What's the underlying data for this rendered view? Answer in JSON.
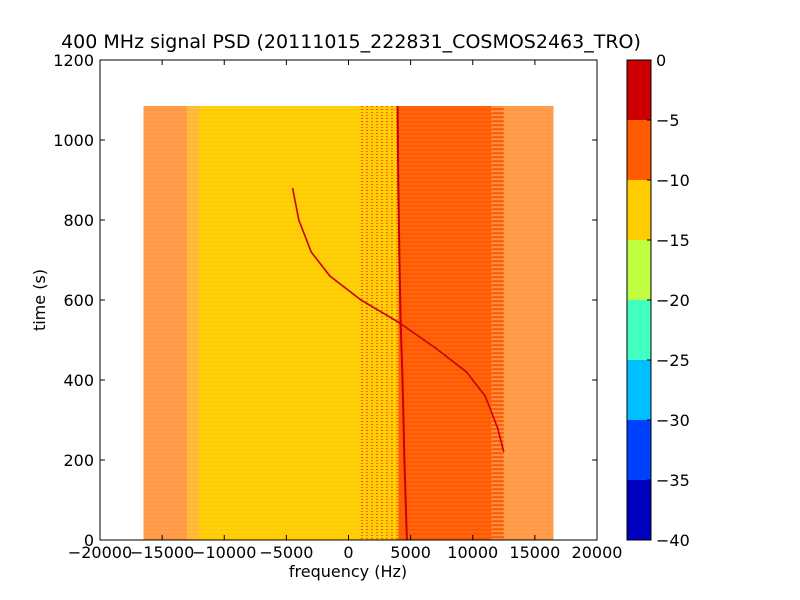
{
  "chart_data": {
    "type": "heatmap",
    "title": "400 MHz signal PSD (20111015_222831_COSMOS2463_TRO)",
    "xlabel": "frequency (Hz)",
    "ylabel": "time (s)",
    "xlim": [
      -20000,
      20000
    ],
    "ylim": [
      0,
      1200
    ],
    "xticks": [
      "−20000",
      "−15000",
      "−10000",
      "−5000",
      "0",
      "5000",
      "10000",
      "15000",
      "20000"
    ],
    "xtick_values": [
      -20000,
      -15000,
      -10000,
      -5000,
      0,
      5000,
      10000,
      15000,
      20000
    ],
    "yticks": [
      "0",
      "200",
      "400",
      "600",
      "800",
      "1000",
      "1200"
    ],
    "ytick_values": [
      0,
      200,
      400,
      600,
      800,
      1000,
      1200
    ],
    "data_extent": {
      "x": [
        -16500,
        16500
      ],
      "y": [
        0,
        1085
      ]
    },
    "colorbar": {
      "range": [
        -40,
        0
      ],
      "levels": [
        -40,
        -35,
        -30,
        -25,
        -20,
        -15,
        -10,
        -5,
        0
      ],
      "ticks": [
        "−40",
        "−35",
        "−30",
        "−25",
        "−20",
        "−15",
        "−10",
        "−5",
        "0"
      ],
      "colors": [
        "#0000bf",
        "#0040ff",
        "#00bfff",
        "#40ffbf",
        "#bfff40",
        "#ffcc00",
        "#ff5a00",
        "#cc0000"
      ]
    },
    "regions": [
      {
        "name": "edge-left",
        "x": [
          -16500,
          -13000
        ],
        "level_color": "#ff9944"
      },
      {
        "name": "transition-left",
        "x": [
          -13000,
          -12000
        ],
        "level_color": "#ffb833"
      },
      {
        "name": "noise-floor",
        "x": [
          -12000,
          1000
        ],
        "level_color": "#ffcc00"
      },
      {
        "name": "elevated-band",
        "x": [
          4000,
          11500
        ],
        "level_color": "#ff5a00"
      },
      {
        "name": "edge-right",
        "x": [
          12500,
          16500
        ],
        "level_color": "#ff9944"
      }
    ],
    "series": [
      {
        "name": "",
        "type": "line",
        "color": "#cc0000",
        "x": [
          4700,
          4500,
          4350,
          4200,
          4100,
          4000,
          3950
        ],
        "y": [
          0,
          200,
          400,
          540,
          700,
          900,
          1085
        ]
      },
      {
        "name": "",
        "type": "line",
        "color": "#cc0000",
        "x": [
          -4500,
          -4000,
          -3000,
          -1500,
          1000,
          4000,
          7000,
          9500,
          11000,
          12000,
          12500
        ],
        "y": [
          880,
          800,
          720,
          660,
          600,
          545,
          480,
          420,
          360,
          280,
          220
        ]
      }
    ]
  }
}
